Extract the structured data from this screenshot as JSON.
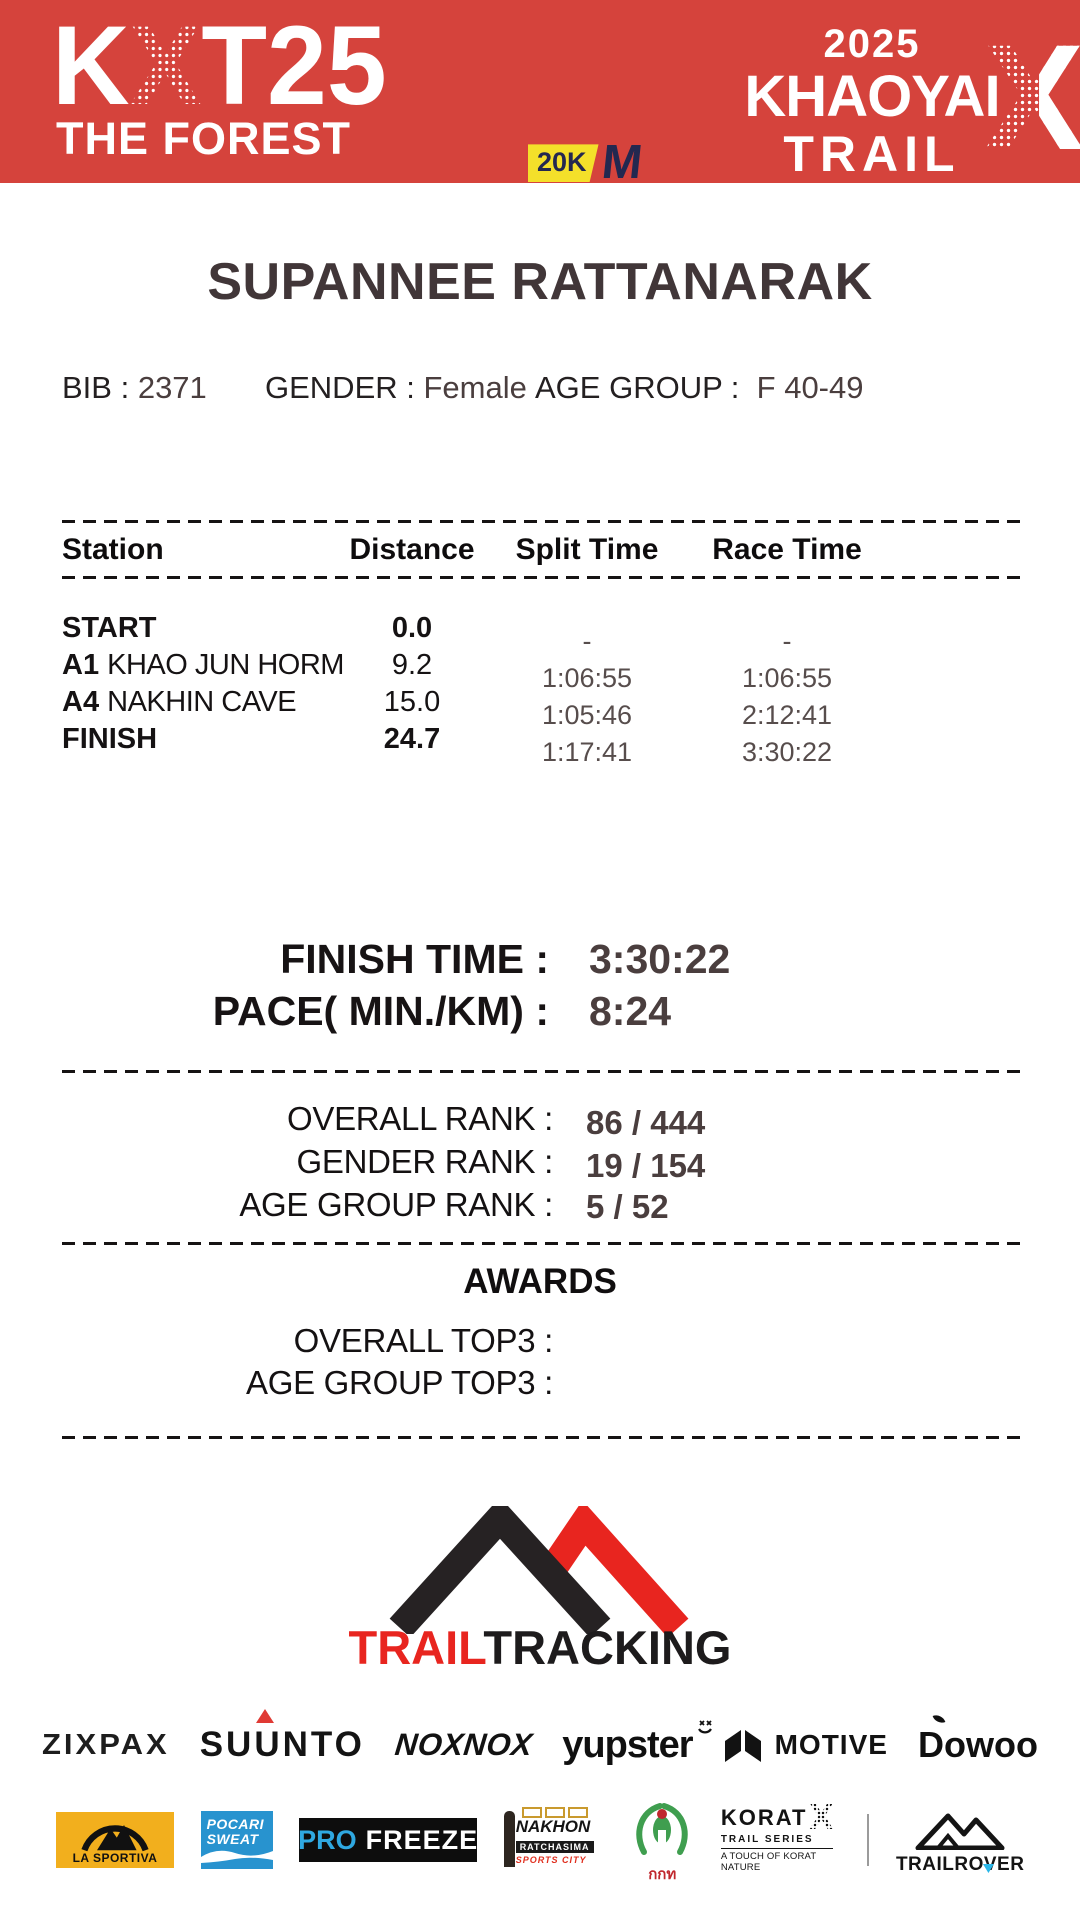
{
  "colors": {
    "banner_red": "#d5433c",
    "navy": "#232850",
    "badge_yellow": "#f4e02a",
    "dark_text": "#413638",
    "time_gray": "#574d4c",
    "value_brown": "#4a3e3e",
    "brand_red": "#e8251f",
    "pocari_blue": "#2893cf",
    "sportiva_amber": "#f2af1d",
    "freeze_blue": "#2fa8e1",
    "rover_cyan": "#29b6e8"
  },
  "banner": {
    "title_k": "K",
    "title_x": "X",
    "title_rest": "T25",
    "subtitle": "THE FOREST",
    "distance_badge": "20K",
    "badge_m": "M",
    "year": "2025",
    "event_line1": "KHAOYAI",
    "event_line2": "TRAIL",
    "x_mark": "X"
  },
  "runner": {
    "name": "SUPANNEE RATTANARAK",
    "bib_label": "BIB :",
    "bib": "2371",
    "gender_label": "GENDER :",
    "gender": "Female",
    "age_group_label": "AGE GROUP :",
    "age_group": "F 40-49"
  },
  "splits": {
    "headers": [
      "Station",
      "Distance",
      "Split Time",
      "Race Time"
    ],
    "rows": [
      {
        "station": "START",
        "name": "",
        "distance": "0.0",
        "split": "-",
        "race": "-"
      },
      {
        "station": "A1",
        "name": "KHAO JUN HORM",
        "distance": "9.2",
        "split": "1:06:55",
        "race": "1:06:55"
      },
      {
        "station": "A4",
        "name": "NAKHIN CAVE",
        "distance": "15.0",
        "split": "1:05:46",
        "race": "2:12:41"
      },
      {
        "station": "FINISH",
        "name": "",
        "distance": "24.7",
        "split": "1:17:41",
        "race": "3:30:22"
      }
    ]
  },
  "summary": {
    "finish_time_label": "FINISH TIME :",
    "finish_time": "3:30:22",
    "pace_label": "PACE( MIN./KM) :",
    "pace": "8:24"
  },
  "ranks": {
    "overall_label": "OVERALL RANK  :",
    "overall": "86 / 444",
    "gender_label": "GENDER RANK  :",
    "gender": "19 / 154",
    "age_group_label": "AGE GROUP RANK :",
    "age_group": "5 / 52"
  },
  "awards": {
    "title": "AWARDS",
    "overall_label": "OVERALL TOP3  :",
    "overall": "",
    "age_group_label": "AGE GROUP TOP3  :",
    "age_group": ""
  },
  "footer": {
    "brand_trail": "TRAIL",
    "brand_tracking": "TRACKING",
    "sponsors": {
      "zixpax": "ZIXPAX",
      "suunto": "SUUNTO",
      "noxnox": "NOXNOX",
      "yupster": "yupster",
      "motive": "MOTIVE",
      "dowoo": "Dowoo"
    },
    "partners": {
      "lasportiva": "LA SPORTIVA",
      "pocari_line1": "POCARI",
      "pocari_line2": "SWEAT",
      "profreeze_pro": "PRO",
      "profreeze_freeze": "FREEZE",
      "nakhon_line1": "NAKHON",
      "nakhon_line2": "RATCHASIMA",
      "nakhon_line3": "SPORTS CITY",
      "sat_text": "กกท",
      "korat": "KORAT",
      "korat_x": "X",
      "korat_series": "TRAIL SERIES",
      "korat_tag": "A TOUCH OF KORAT NATURE",
      "trailrover": "TRAILROVER"
    }
  }
}
